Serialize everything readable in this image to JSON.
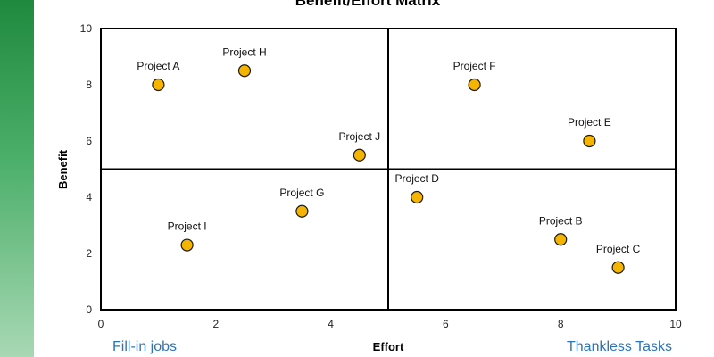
{
  "chart_data": {
    "type": "scatter",
    "title": "Benefit/Effort Matrix",
    "xlabel": "Effort",
    "ylabel": "Benefit",
    "xlim": [
      0,
      10
    ],
    "ylim": [
      0,
      10
    ],
    "x_ticks": [
      "0",
      "2",
      "4",
      "6",
      "8",
      "10"
    ],
    "y_ticks": [
      "0",
      "2",
      "4",
      "6",
      "8",
      "10"
    ],
    "divider_x": 5,
    "divider_y": 5,
    "marker_color": "#f5b400",
    "marker_edge_color": "#1a1a1a",
    "points": [
      {
        "label": "Project A",
        "x": 1.0,
        "y": 8.0
      },
      {
        "label": "Project H",
        "x": 2.5,
        "y": 8.5
      },
      {
        "label": "Project J",
        "x": 4.5,
        "y": 5.5
      },
      {
        "label": "Project F",
        "x": 6.5,
        "y": 8.0
      },
      {
        "label": "Project E",
        "x": 8.5,
        "y": 6.0
      },
      {
        "label": "Project D",
        "x": 5.5,
        "y": 4.0
      },
      {
        "label": "Project G",
        "x": 3.5,
        "y": 3.5
      },
      {
        "label": "Project I",
        "x": 1.5,
        "y": 2.3
      },
      {
        "label": "Project B",
        "x": 8.0,
        "y": 2.5
      },
      {
        "label": "Project C",
        "x": 9.0,
        "y": 1.5
      }
    ]
  },
  "quadrant_labels": {
    "bottom_left": "Fill-in jobs",
    "bottom_right": "Thankless Tasks"
  },
  "accent_color": "#2e75b6"
}
